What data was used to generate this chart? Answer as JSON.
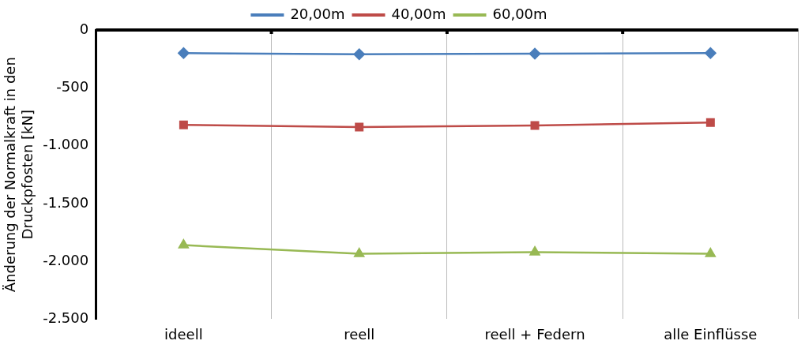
{
  "chart_data": {
    "type": "line",
    "ylabel": "Änderung der Normalkraft in den Druckpfosten [kN]",
    "categories": [
      "ideell",
      "reell",
      "reell + Federn",
      "alle Einflüsse"
    ],
    "series": [
      {
        "name": "20,00m",
        "color": "#4a7ebb",
        "marker": "diamond",
        "values": [
          -200,
          -210,
          -205,
          -200
        ]
      },
      {
        "name": "40,00m",
        "color": "#be4b48",
        "marker": "square",
        "values": [
          -820,
          -840,
          -825,
          -800
        ]
      },
      {
        "name": "60,00m",
        "color": "#98b954",
        "marker": "triangle",
        "values": [
          -1860,
          -1935,
          -1920,
          -1935
        ]
      }
    ],
    "ylim": [
      -2500,
      0
    ],
    "yticks": [
      {
        "value": -2500,
        "label": "-2.500"
      },
      {
        "value": -2000,
        "label": "-2.000"
      },
      {
        "value": -1500,
        "label": "-1.500"
      },
      {
        "value": -1000,
        "label": "-1.000"
      },
      {
        "value": -500,
        "label": "-500"
      },
      {
        "value": 0,
        "label": "0"
      }
    ],
    "grid": "x",
    "legend": "top"
  }
}
